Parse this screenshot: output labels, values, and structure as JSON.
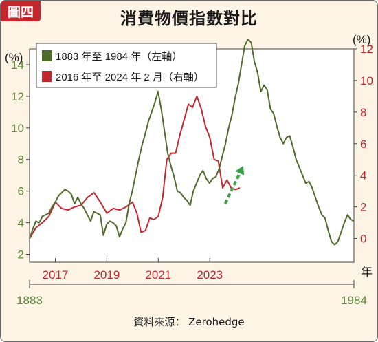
{
  "badge": "圖四",
  "source": "資料來源： Zerohedge",
  "colors": {
    "left_series": "#4f6b2a",
    "right_series": "#c4262e",
    "left_axis_text": "#5b8a35",
    "right_axis_text": "#c4262e",
    "top_axis_text": "#c4262e",
    "bottom_axis_text": "#5b8a35",
    "arrow": "#3aa048",
    "background": "#fdf4e6"
  },
  "chart_data": {
    "type": "line",
    "title": "消費物價指數對比",
    "y_left": {
      "label": "(%)",
      "ylim": [
        1.5,
        15
      ],
      "ticks": [
        2,
        4,
        6,
        8,
        10,
        12,
        14
      ]
    },
    "y_right": {
      "label": "(%)",
      "ylim": [
        -1.5,
        12
      ],
      "ticks": [
        0,
        2,
        4,
        6,
        8,
        10,
        12
      ]
    },
    "x_top": {
      "label": "年",
      "ticks": [
        2017,
        2019,
        2021,
        2023
      ],
      "range": [
        2016,
        2028.6
      ]
    },
    "x_bottom": {
      "range": [
        1883,
        1984
      ],
      "ticks": [
        1883,
        1984
      ]
    },
    "grid": false,
    "legend_position": "top-left",
    "series": [
      {
        "name": "1883 年至 1984 年（左軸）",
        "axis": "left",
        "x": [
          1883,
          1884,
          1885,
          1886,
          1887,
          1888,
          1889,
          1890,
          1891,
          1892,
          1893,
          1894,
          1895,
          1896,
          1897,
          1898,
          1899,
          1900,
          1901,
          1902,
          1903,
          1904,
          1905,
          1906,
          1907,
          1908,
          1909,
          1910,
          1911,
          1912,
          1913,
          1914,
          1915,
          1916,
          1917,
          1918,
          1919,
          1920,
          1921,
          1922,
          1923,
          1924,
          1925,
          1926,
          1927,
          1928,
          1929,
          1930,
          1931,
          1932,
          1933,
          1934,
          1935,
          1936,
          1937,
          1938,
          1939,
          1940,
          1941,
          1942,
          1943,
          1944,
          1945,
          1946,
          1947,
          1948,
          1949,
          1950,
          1951,
          1952,
          1953,
          1954,
          1955,
          1956,
          1957,
          1958,
          1959,
          1960,
          1961,
          1962,
          1963,
          1964,
          1965,
          1966,
          1967,
          1968,
          1969,
          1970,
          1971,
          1972,
          1973,
          1974,
          1975,
          1976,
          1977,
          1978,
          1979,
          1980,
          1981,
          1982,
          1983,
          1984
        ],
        "y": [
          3.0,
          3.6,
          4.1,
          4.0,
          4.4,
          4.5,
          4.6,
          5.0,
          5.3,
          5.7,
          5.9,
          6.1,
          6.0,
          5.8,
          5.2,
          5.6,
          5.2,
          4.9,
          4.5,
          4.1,
          4.7,
          4.6,
          4.5,
          3.2,
          3.9,
          4.1,
          4.0,
          3.8,
          3.1,
          3.6,
          4.0,
          5.2,
          6.0,
          7.0,
          8.0,
          8.9,
          9.6,
          10.4,
          11.0,
          11.6,
          12.3,
          11.2,
          9.8,
          8.4,
          7.6,
          6.9,
          6.0,
          5.9,
          5.6,
          5.4,
          5.1,
          6.0,
          6.5,
          7.0,
          7.3,
          6.8,
          6.5,
          6.8,
          6.9,
          7.4,
          8.2,
          9.0,
          10.0,
          10.8,
          11.9,
          12.8,
          14.0,
          15.2,
          15.6,
          15.4,
          14.2,
          13.5,
          12.3,
          12.7,
          12.4,
          11.2,
          10.9,
          10.1,
          9.4,
          9.0,
          9.4,
          9.5,
          8.8,
          8.0,
          7.5,
          7.0,
          6.5,
          6.6,
          6.2,
          5.6,
          5.0,
          4.5,
          4.3,
          3.5,
          2.8,
          2.6,
          2.8,
          3.4,
          4.0,
          4.5,
          4.2,
          4.1
        ]
      },
      {
        "name": "2016 年至 2024 年 2 月（右軸）",
        "axis": "right",
        "x": [
          2016.0,
          2016.25,
          2016.5,
          2016.75,
          2017.0,
          2017.25,
          2017.5,
          2017.75,
          2018.0,
          2018.25,
          2018.5,
          2018.75,
          2019.0,
          2019.25,
          2019.5,
          2019.75,
          2020.0,
          2020.17,
          2020.33,
          2020.5,
          2020.67,
          2020.83,
          2021.0,
          2021.17,
          2021.33,
          2021.5,
          2021.67,
          2021.83,
          2022.0,
          2022.17,
          2022.33,
          2022.5,
          2022.67,
          2022.83,
          2023.0,
          2023.17,
          2023.33,
          2023.5,
          2023.67,
          2023.83,
          2024.0,
          2024.17
        ],
        "y": [
          0.0,
          0.7,
          1.0,
          1.4,
          2.3,
          1.9,
          1.8,
          2.0,
          2.1,
          2.6,
          2.9,
          2.3,
          1.6,
          1.9,
          1.8,
          2.0,
          2.3,
          1.6,
          0.4,
          0.5,
          1.3,
          1.2,
          1.4,
          2.6,
          5.0,
          5.4,
          5.4,
          6.5,
          7.5,
          8.5,
          8.3,
          9.0,
          8.2,
          7.1,
          6.4,
          5.0,
          4.9,
          3.2,
          3.7,
          3.2,
          3.1,
          3.2
        ]
      }
    ],
    "annotations": [
      {
        "type": "arrow",
        "style": "dashed",
        "from_year": 2023.6,
        "to_year": 2024.3,
        "axis": "right",
        "from_value": 2.2,
        "to_value": 4.6
      }
    ]
  }
}
